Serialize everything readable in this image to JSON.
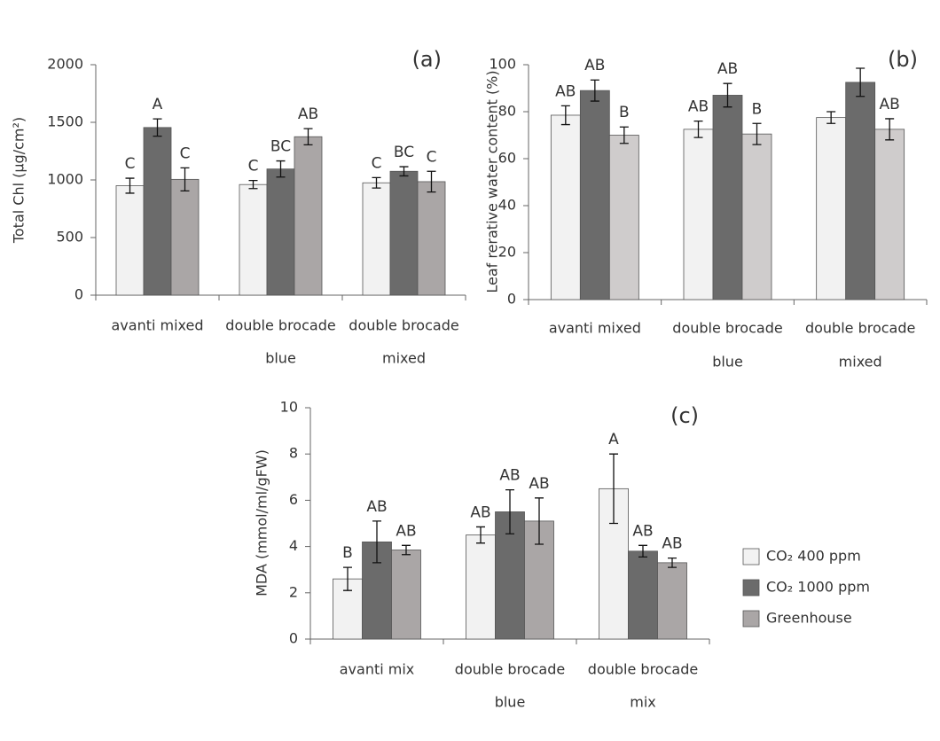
{
  "chart_data": [
    {
      "type": "bar",
      "panel": "(a)",
      "y_label": "Total Chl (μg/cm²)",
      "categories": [
        [
          "avanti mixed"
        ],
        [
          "double brocade",
          "blue"
        ],
        [
          "double brocade",
          "mixed"
        ]
      ],
      "ylim": [
        0,
        2000
      ],
      "yticks": [
        0,
        500,
        1000,
        1500,
        2000
      ],
      "series": [
        {
          "color": "#f2f2f2",
          "values": [
            950,
            960,
            975
          ],
          "errors": [
            65,
            35,
            45
          ],
          "annotations": [
            "C",
            "C",
            "C"
          ]
        },
        {
          "color": "#6b6b6b",
          "values": [
            1455,
            1095,
            1075
          ],
          "errors": [
            75,
            70,
            40
          ],
          "annotations": [
            "A",
            "BC",
            "BC"
          ]
        },
        {
          "color": "#aaa6a6",
          "values": [
            1005,
            1375,
            985
          ],
          "errors": [
            100,
            70,
            90
          ],
          "annotations": [
            "C",
            "AB",
            "C"
          ]
        }
      ]
    },
    {
      "type": "bar",
      "panel": "(b)",
      "y_label": "Leaf rerative water content (%)",
      "categories": [
        [
          "avanti mixed"
        ],
        [
          "double brocade",
          "blue"
        ],
        [
          "double brocade",
          "mixed"
        ]
      ],
      "ylim": [
        0,
        100
      ],
      "yticks": [
        0,
        20,
        40,
        60,
        80,
        100
      ],
      "series": [
        {
          "color": "#f2f2f2",
          "values": [
            78.5,
            72.5,
            77.5
          ],
          "errors": [
            4,
            3.5,
            2.5
          ],
          "annotations": [
            "AB",
            "AB",
            null
          ]
        },
        {
          "color": "#6b6b6b",
          "values": [
            89,
            87,
            92.5
          ],
          "errors": [
            4.5,
            5,
            6
          ],
          "annotations": [
            "AB",
            "AB",
            null
          ]
        },
        {
          "color": "#cfcccc",
          "values": [
            70,
            70.5,
            72.5
          ],
          "errors": [
            3.5,
            4.5,
            4.5
          ],
          "annotations": [
            "B",
            "B",
            "AB"
          ]
        }
      ]
    },
    {
      "type": "bar",
      "panel": "(c)",
      "y_label": "MDA (mmol/ml/gFW)",
      "categories": [
        [
          "avanti mix"
        ],
        [
          "double brocade",
          "blue"
        ],
        [
          "double brocade",
          "mix"
        ]
      ],
      "ylim": [
        0,
        10
      ],
      "yticks": [
        0,
        2,
        4,
        6,
        8,
        10
      ],
      "legend": "right",
      "series": [
        {
          "name": "CO₂ 400 ppm",
          "color": "#f2f2f2",
          "values": [
            2.6,
            4.5,
            6.5
          ],
          "errors": [
            0.5,
            0.35,
            1.5
          ],
          "annotations": [
            "B",
            "AB",
            "A"
          ]
        },
        {
          "name": "CO₂ 1000 ppm",
          "color": "#6b6b6b",
          "values": [
            4.2,
            5.5,
            3.8
          ],
          "errors": [
            0.9,
            0.95,
            0.25
          ],
          "annotations": [
            "AB",
            "AB",
            "AB"
          ]
        },
        {
          "name": "Greenhouse",
          "color": "#aaa6a6",
          "values": [
            3.85,
            5.1,
            3.3
          ],
          "errors": [
            0.2,
            1.0,
            0.2
          ],
          "annotations": [
            "AB",
            "AB",
            "AB"
          ]
        }
      ]
    }
  ]
}
